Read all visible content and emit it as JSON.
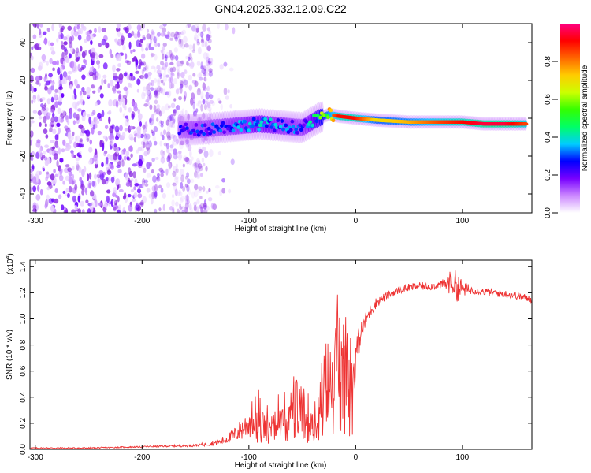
{
  "title": "GN04.2025.332.12.09.C22",
  "chart_data": [
    {
      "type": "heatmap",
      "name": "spectrogram",
      "xlabel": "Height of straight line (km)",
      "ylabel": "Frequency (Hz)",
      "xlim": [
        -305,
        165
      ],
      "ylim": [
        -50,
        50
      ],
      "xticks": [
        -300,
        -200,
        -100,
        0,
        100
      ],
      "xtick_labels": [
        "-300",
        "-200",
        "-100",
        "0",
        "100"
      ],
      "yticks": [
        -40,
        -20,
        0,
        20,
        40
      ],
      "ytick_labels": [
        "-40",
        "-20",
        "0",
        "20",
        "40"
      ],
      "noise_region_x": [
        -305,
        -135
      ],
      "signal_track": {
        "x": [
          -165,
          -150,
          -130,
          -110,
          -90,
          -70,
          -50,
          -35,
          -25,
          -15,
          0,
          20,
          50,
          80,
          100,
          120,
          140,
          160
        ],
        "freq": [
          -6,
          -6,
          -5,
          -4,
          -3,
          -4,
          -5,
          0,
          2,
          1,
          0,
          -1,
          -2,
          -2,
          -2,
          -3,
          -3,
          -3
        ],
        "amplitude": [
          0.25,
          0.3,
          0.3,
          0.35,
          0.4,
          0.35,
          0.3,
          0.5,
          0.75,
          0.9,
          0.9,
          0.7,
          0.75,
          0.85,
          0.9,
          0.95,
          0.95,
          0.85
        ]
      },
      "colorbar": {
        "label": "Normalized spectral amplitude",
        "range": [
          0,
          1
        ],
        "ticks": [
          0,
          0.2,
          0.4,
          0.6,
          0.8
        ],
        "tick_labels": [
          "0.0",
          "0.2",
          "0.4",
          "0.6",
          "0.8"
        ],
        "colors": [
          "#ffffff",
          "#cc88ff",
          "#7700ff",
          "#0000ff",
          "#00ccff",
          "#00ff66",
          "#33ff00",
          "#ccff00",
          "#ffcc00",
          "#ff6600",
          "#ff0000",
          "#ff0080"
        ]
      }
    },
    {
      "type": "line",
      "name": "snr",
      "xlabel": "Height of straight line (km)",
      "ylabel": "SNR (10 * v/v)",
      "y_multiplier": "(x10",
      "y_multiplier_exp": "4",
      "y_multiplier_close": ")",
      "xlim": [
        -305,
        165
      ],
      "ylim": [
        0,
        1.45
      ],
      "xticks": [
        -300,
        -200,
        -100,
        0,
        100
      ],
      "xtick_labels": [
        "-300",
        "-200",
        "-100",
        "0",
        "100"
      ],
      "yticks": [
        0,
        0.2,
        0.4,
        0.6,
        0.8,
        1.0,
        1.2,
        1.4
      ],
      "ytick_labels": [
        "0.0",
        "0.2",
        "0.4",
        "0.6",
        "0.8",
        "1.0",
        "1.2",
        "1.4"
      ],
      "color": "#ee3333",
      "series": {
        "name": "SNR",
        "x": [
          -305,
          -250,
          -200,
          -150,
          -130,
          -115,
          -100,
          -90,
          -80,
          -70,
          -60,
          -50,
          -40,
          -30,
          -22,
          -18,
          -15,
          -10,
          -5,
          0,
          5,
          10,
          15,
          20,
          30,
          40,
          50,
          60,
          70,
          80,
          90,
          95,
          100,
          110,
          120,
          130,
          140,
          150,
          160,
          165
        ],
        "y": [
          0.01,
          0.01,
          0.02,
          0.03,
          0.05,
          0.1,
          0.2,
          0.3,
          0.25,
          0.3,
          0.35,
          0.28,
          0.25,
          0.45,
          0.7,
          1.0,
          0.6,
          0.8,
          0.65,
          0.72,
          0.9,
          1.0,
          1.08,
          1.13,
          1.18,
          1.22,
          1.24,
          1.25,
          1.25,
          1.26,
          1.28,
          1.25,
          1.23,
          1.22,
          1.21,
          1.2,
          1.19,
          1.18,
          1.16,
          1.15
        ],
        "noise": [
          0.005,
          0.005,
          0.005,
          0.01,
          0.02,
          0.05,
          0.12,
          0.2,
          0.18,
          0.2,
          0.25,
          0.2,
          0.2,
          0.3,
          0.4,
          0.4,
          0.4,
          0.3,
          0.25,
          0.15,
          0.08,
          0.06,
          0.05,
          0.04,
          0.03,
          0.03,
          0.03,
          0.03,
          0.03,
          0.03,
          0.1,
          0.12,
          0.06,
          0.03,
          0.03,
          0.03,
          0.03,
          0.03,
          0.03,
          0.03
        ]
      }
    }
  ]
}
